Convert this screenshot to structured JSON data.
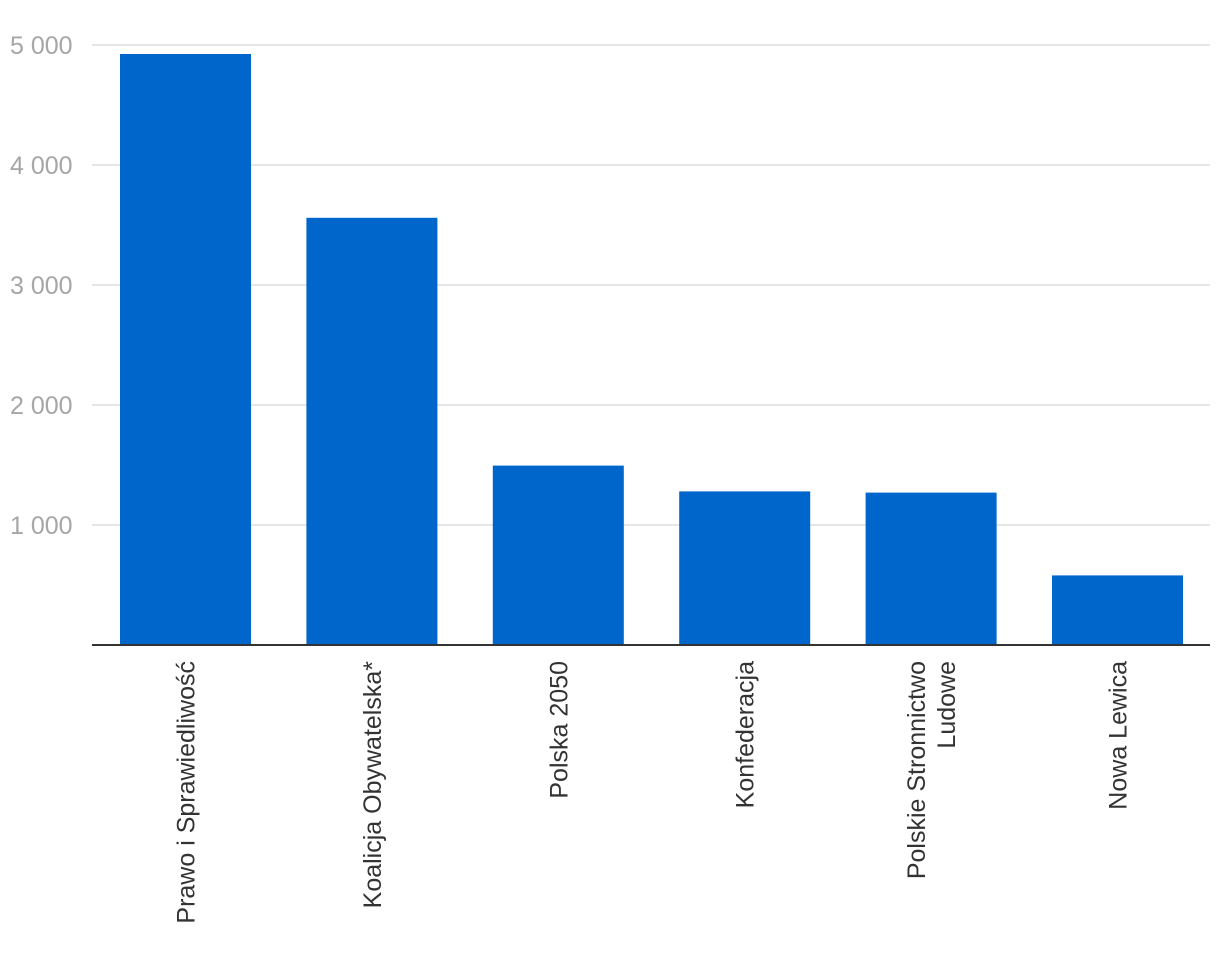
{
  "chart_data": {
    "type": "bar",
    "categories": [
      [
        "Prawo i Sprawiedliwość"
      ],
      [
        "Koalicja Obywatelska*"
      ],
      [
        "Polska 2050"
      ],
      [
        "Konfederacja"
      ],
      [
        "Polskie Stronnictwo",
        "Ludowe"
      ],
      [
        "Nowa Lewica"
      ]
    ],
    "values": [
      4925,
      3560,
      1495,
      1280,
      1270,
      580
    ],
    "ylim": [
      0,
      5000
    ],
    "yticks": [
      1000,
      2000,
      3000,
      4000,
      5000
    ],
    "ytick_labels": [
      "1 000",
      "2 000",
      "3 000",
      "4 000",
      "5 000"
    ],
    "title": "",
    "xlabel": "",
    "ylabel": "",
    "grid": true,
    "legend": "none",
    "colors": {
      "bar": "#0066cc",
      "grid": "#dddddd",
      "axis": "#333333",
      "ytick": "#a6a6a6",
      "xtick": "#333333"
    }
  }
}
